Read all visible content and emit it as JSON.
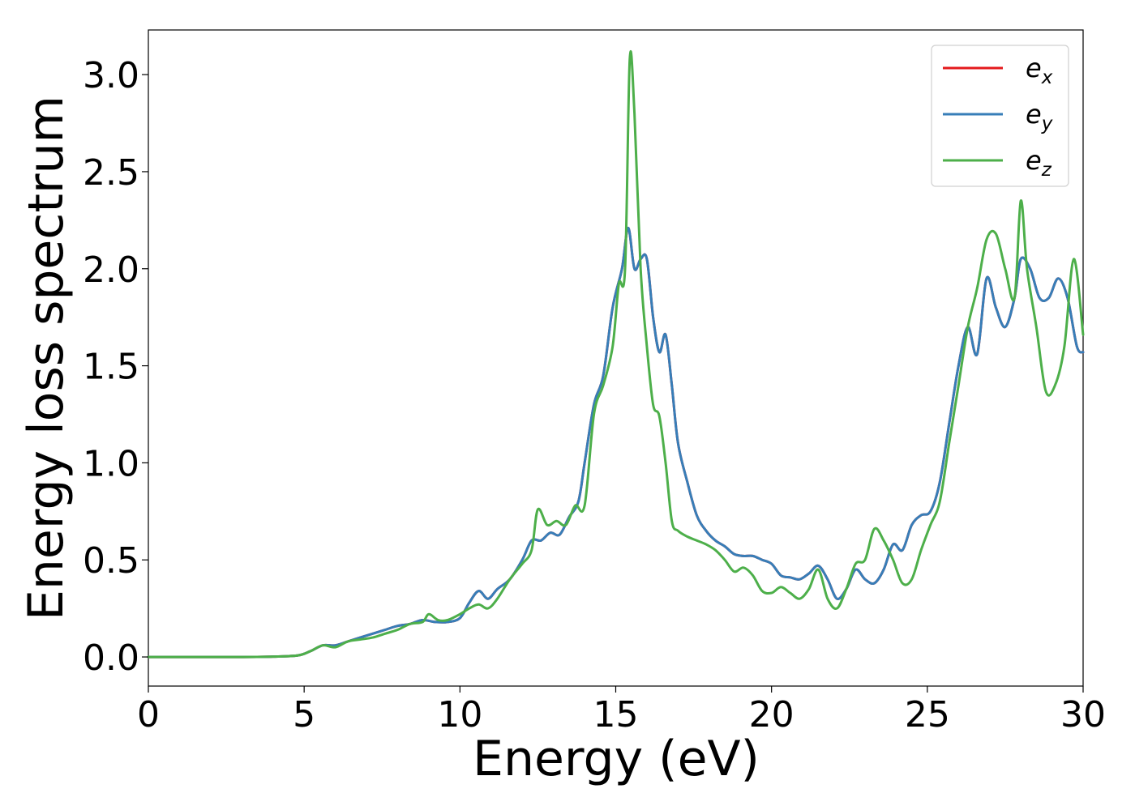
{
  "chart_data": {
    "type": "line",
    "title": "",
    "xlabel": "Energy (eV)",
    "ylabel": "Energy loss spectrum",
    "xlim": [
      0,
      30
    ],
    "ylim": [
      -0.15,
      3.23
    ],
    "xticks": [
      0,
      5,
      10,
      15,
      20,
      25,
      30
    ],
    "xtick_labels": [
      "0",
      "5",
      "10",
      "15",
      "20",
      "25",
      "30"
    ],
    "yticks": [
      0.0,
      0.5,
      1.0,
      1.5,
      2.0,
      2.5,
      3.0
    ],
    "ytick_labels": [
      "0.0",
      "0.5",
      "1.0",
      "1.5",
      "2.0",
      "2.5",
      "3.0"
    ],
    "grid": false,
    "legend_position": "top-right",
    "series": [
      {
        "name": "e_x",
        "legend_main": "e",
        "legend_sub": "x",
        "color": "#e41a1c",
        "hidden_behind": "e_y",
        "x": [
          0,
          1,
          2,
          3,
          4,
          4.8,
          5.2,
          5.6,
          6.0,
          6.4,
          6.8,
          7.2,
          7.6,
          8.0,
          8.4,
          8.8,
          9.2,
          9.6,
          10.0,
          10.3,
          10.6,
          10.9,
          11.2,
          11.6,
          12.0,
          12.3,
          12.6,
          12.9,
          13.2,
          13.5,
          13.8,
          14.0,
          14.3,
          14.6,
          14.9,
          15.2,
          15.4,
          15.6,
          15.8,
          16.0,
          16.2,
          16.4,
          16.6,
          16.8,
          17.0,
          17.3,
          17.6,
          17.9,
          18.2,
          18.5,
          18.8,
          19.1,
          19.4,
          19.7,
          20.0,
          20.3,
          20.6,
          20.9,
          21.2,
          21.5,
          21.8,
          22.1,
          22.4,
          22.7,
          23.0,
          23.3,
          23.6,
          23.9,
          24.2,
          24.5,
          24.8,
          25.1,
          25.4,
          25.7,
          26.0,
          26.3,
          26.6,
          26.9,
          27.2,
          27.5,
          27.8,
          28.0,
          28.3,
          28.6,
          28.9,
          29.2,
          29.5,
          29.8,
          30.0
        ],
        "y": [
          0,
          0,
          0,
          0,
          0.002,
          0.008,
          0.03,
          0.06,
          0.06,
          0.08,
          0.1,
          0.12,
          0.14,
          0.16,
          0.17,
          0.19,
          0.18,
          0.18,
          0.2,
          0.28,
          0.34,
          0.3,
          0.35,
          0.4,
          0.5,
          0.6,
          0.6,
          0.64,
          0.63,
          0.72,
          0.8,
          1.0,
          1.3,
          1.45,
          1.8,
          2.0,
          2.21,
          2.0,
          2.05,
          2.05,
          1.75,
          1.57,
          1.66,
          1.4,
          1.1,
          0.9,
          0.73,
          0.65,
          0.6,
          0.57,
          0.53,
          0.52,
          0.52,
          0.5,
          0.48,
          0.42,
          0.41,
          0.4,
          0.43,
          0.47,
          0.4,
          0.3,
          0.35,
          0.45,
          0.4,
          0.38,
          0.45,
          0.58,
          0.55,
          0.68,
          0.73,
          0.75,
          0.9,
          1.2,
          1.5,
          1.7,
          1.56,
          1.95,
          1.8,
          1.7,
          1.85,
          2.05,
          2.0,
          1.85,
          1.85,
          1.95,
          1.85,
          1.6,
          1.57
        ]
      },
      {
        "name": "e_y",
        "legend_main": "e",
        "legend_sub": "y",
        "color": "#377eb8",
        "x": [
          0,
          1,
          2,
          3,
          4,
          4.8,
          5.2,
          5.6,
          6.0,
          6.4,
          6.8,
          7.2,
          7.6,
          8.0,
          8.4,
          8.8,
          9.2,
          9.6,
          10.0,
          10.3,
          10.6,
          10.9,
          11.2,
          11.6,
          12.0,
          12.3,
          12.6,
          12.9,
          13.2,
          13.5,
          13.8,
          14.0,
          14.3,
          14.6,
          14.9,
          15.2,
          15.4,
          15.6,
          15.8,
          16.0,
          16.2,
          16.4,
          16.6,
          16.8,
          17.0,
          17.3,
          17.6,
          17.9,
          18.2,
          18.5,
          18.8,
          19.1,
          19.4,
          19.7,
          20.0,
          20.3,
          20.6,
          20.9,
          21.2,
          21.5,
          21.8,
          22.1,
          22.4,
          22.7,
          23.0,
          23.3,
          23.6,
          23.9,
          24.2,
          24.5,
          24.8,
          25.1,
          25.4,
          25.7,
          26.0,
          26.3,
          26.6,
          26.9,
          27.2,
          27.5,
          27.8,
          28.0,
          28.3,
          28.6,
          28.9,
          29.2,
          29.5,
          29.8,
          30.0
        ],
        "y": [
          0,
          0,
          0,
          0,
          0.002,
          0.008,
          0.03,
          0.06,
          0.06,
          0.08,
          0.1,
          0.12,
          0.14,
          0.16,
          0.17,
          0.19,
          0.18,
          0.18,
          0.2,
          0.28,
          0.34,
          0.3,
          0.35,
          0.4,
          0.5,
          0.6,
          0.6,
          0.64,
          0.63,
          0.72,
          0.8,
          1.0,
          1.3,
          1.45,
          1.8,
          2.0,
          2.21,
          2.0,
          2.05,
          2.05,
          1.75,
          1.57,
          1.66,
          1.4,
          1.1,
          0.9,
          0.73,
          0.65,
          0.6,
          0.57,
          0.53,
          0.52,
          0.52,
          0.5,
          0.48,
          0.42,
          0.41,
          0.4,
          0.43,
          0.47,
          0.4,
          0.3,
          0.35,
          0.45,
          0.4,
          0.38,
          0.45,
          0.58,
          0.55,
          0.68,
          0.73,
          0.75,
          0.9,
          1.2,
          1.5,
          1.7,
          1.56,
          1.95,
          1.8,
          1.7,
          1.85,
          2.05,
          2.0,
          1.85,
          1.85,
          1.95,
          1.85,
          1.6,
          1.57
        ]
      },
      {
        "name": "e_z",
        "legend_main": "e",
        "legend_sub": "z",
        "color": "#4daf4a",
        "x": [
          0,
          1,
          2,
          3,
          4,
          4.8,
          5.2,
          5.6,
          6.0,
          6.4,
          6.8,
          7.2,
          7.6,
          8.0,
          8.4,
          8.8,
          9.0,
          9.3,
          9.6,
          10.0,
          10.3,
          10.6,
          10.9,
          11.2,
          11.6,
          12.0,
          12.3,
          12.5,
          12.8,
          13.1,
          13.4,
          13.7,
          14.0,
          14.3,
          14.6,
          14.9,
          15.1,
          15.3,
          15.45,
          15.6,
          15.8,
          16.0,
          16.2,
          16.4,
          16.6,
          16.8,
          17.0,
          17.3,
          17.6,
          17.9,
          18.2,
          18.5,
          18.8,
          19.1,
          19.4,
          19.7,
          20.0,
          20.3,
          20.6,
          20.9,
          21.2,
          21.5,
          21.8,
          22.1,
          22.4,
          22.7,
          23.0,
          23.3,
          23.6,
          23.9,
          24.2,
          24.5,
          24.8,
          25.1,
          25.4,
          25.7,
          26.0,
          26.3,
          26.6,
          26.9,
          27.2,
          27.5,
          27.8,
          28.0,
          28.2,
          28.5,
          28.8,
          29.1,
          29.4,
          29.7,
          30.0
        ],
        "y": [
          0,
          0,
          0,
          0,
          0.002,
          0.008,
          0.03,
          0.06,
          0.05,
          0.08,
          0.09,
          0.1,
          0.12,
          0.14,
          0.17,
          0.18,
          0.22,
          0.19,
          0.19,
          0.22,
          0.25,
          0.27,
          0.25,
          0.3,
          0.4,
          0.48,
          0.55,
          0.76,
          0.68,
          0.7,
          0.68,
          0.78,
          0.78,
          1.25,
          1.4,
          1.6,
          1.92,
          2.0,
          3.08,
          2.8,
          2.0,
          1.6,
          1.3,
          1.24,
          1.0,
          0.7,
          0.65,
          0.62,
          0.6,
          0.58,
          0.55,
          0.5,
          0.44,
          0.46,
          0.42,
          0.34,
          0.33,
          0.36,
          0.33,
          0.3,
          0.35,
          0.45,
          0.3,
          0.25,
          0.35,
          0.48,
          0.5,
          0.66,
          0.6,
          0.5,
          0.38,
          0.4,
          0.55,
          0.68,
          0.8,
          1.1,
          1.4,
          1.7,
          1.9,
          2.15,
          2.18,
          2.0,
          1.85,
          2.35,
          2.0,
          1.7,
          1.37,
          1.4,
          1.6,
          2.05,
          1.66
        ]
      }
    ]
  }
}
